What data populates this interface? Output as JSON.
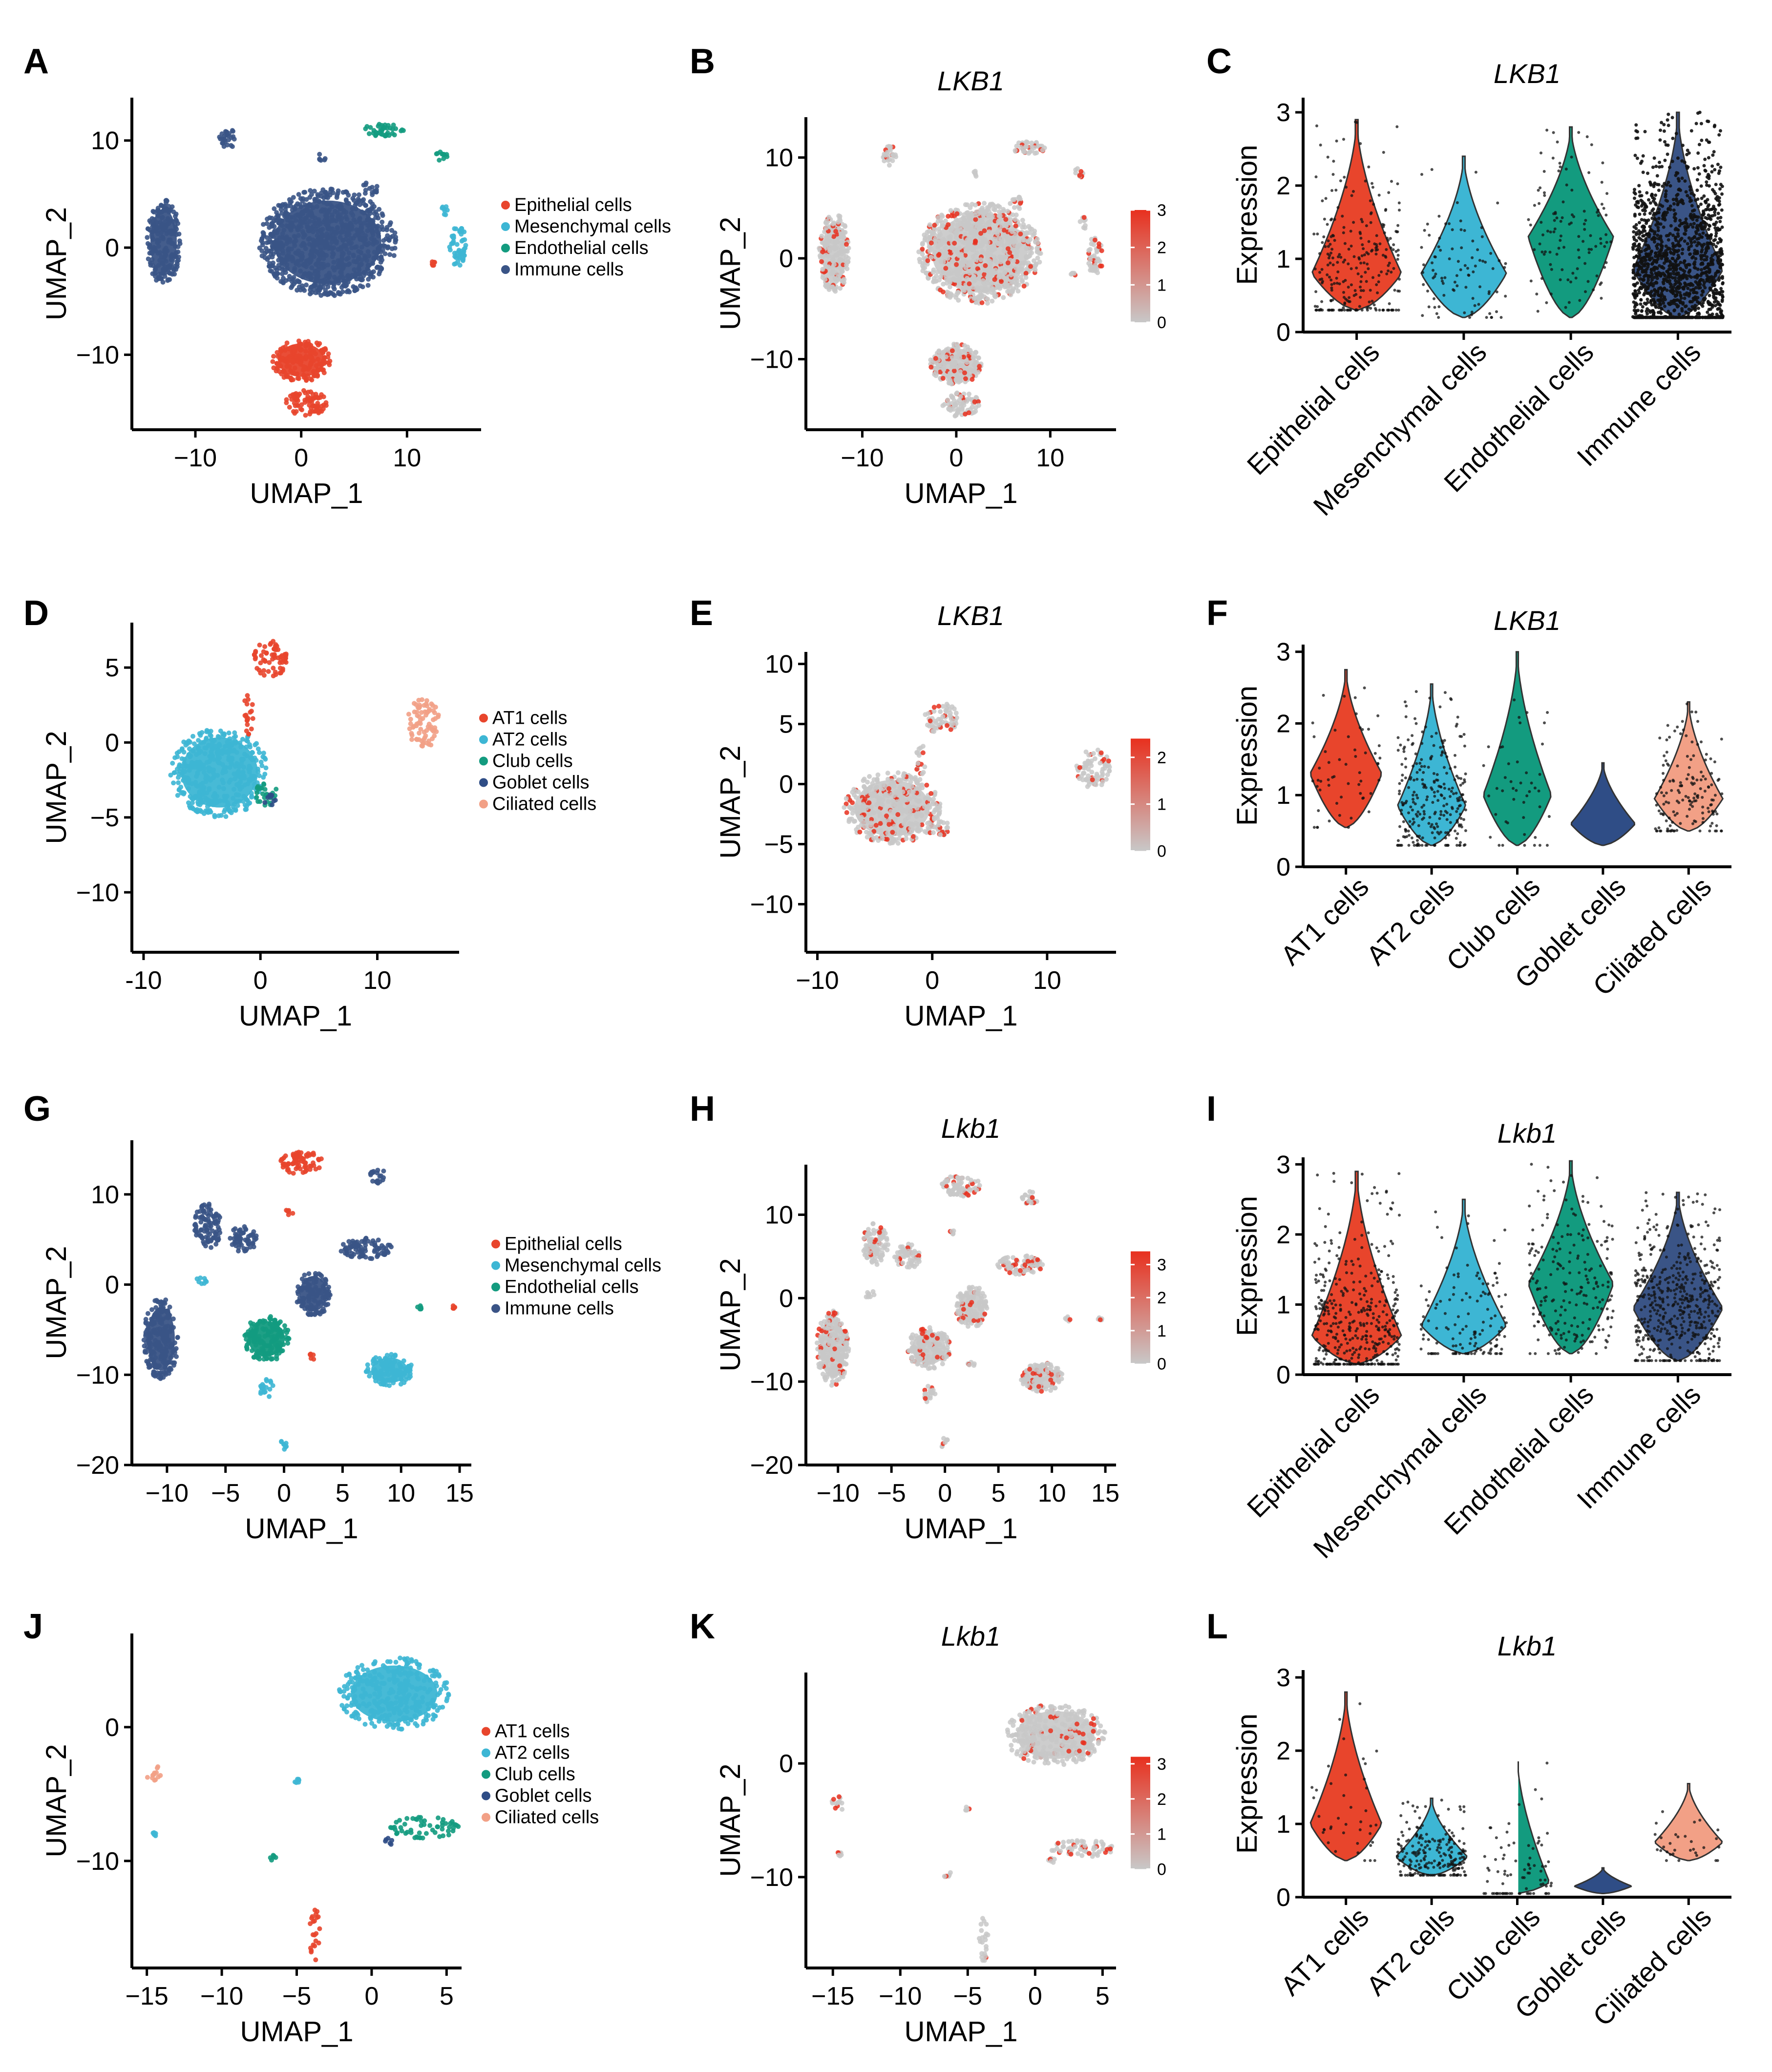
{
  "colors": {
    "epithelial": "#e8452c",
    "mesenchymal": "#3db6d4",
    "endothelial": "#139b7f",
    "immune": "#3a5486",
    "at1": "#e8452c",
    "at2": "#3db6d4",
    "club": "#139b7f",
    "goblet": "#2f4d86",
    "ciliated": "#f2a086",
    "feature_low": "#c8c8c8",
    "feature_high": "#e8301e",
    "axis": "#000000"
  },
  "chart_data": [
    {
      "panel": "A",
      "type": "scatter",
      "title": "",
      "xlabel": "UMAP_1",
      "ylabel": "UMAP_2",
      "xlim": [
        -16,
        17
      ],
      "ylim": [
        -17,
        14
      ],
      "xticks": [
        -10,
        0,
        10
      ],
      "yticks": [
        -10,
        0,
        10
      ],
      "xtick_labels": [
        "−10",
        "0",
        "10"
      ],
      "ytick_labels": [
        "−10",
        "0",
        "10"
      ],
      "legend": [
        {
          "label": "Epithelial cells",
          "color_key": "epithelial"
        },
        {
          "label": "Mesenchymal cells",
          "color_key": "mesenchymal"
        },
        {
          "label": "Endothelial cells",
          "color_key": "endothelial"
        },
        {
          "label": "Immune cells",
          "color_key": "immune"
        }
      ],
      "clusters": [
        {
          "group": "immune",
          "cx": 2.5,
          "cy": 0.5,
          "rx": 6.5,
          "ry": 5.0
        },
        {
          "group": "immune",
          "cx": -13.0,
          "cy": 0.5,
          "rx": 1.6,
          "ry": 4.0
        },
        {
          "group": "immune",
          "cx": -7.0,
          "cy": 10.2,
          "rx": 0.8,
          "ry": 1.0
        },
        {
          "group": "immune",
          "cx": 6.5,
          "cy": 5.5,
          "rx": 0.8,
          "ry": 0.6
        },
        {
          "group": "immune",
          "cx": 2.0,
          "cy": 8.5,
          "rx": 0.4,
          "ry": 0.4
        },
        {
          "group": "endothelial",
          "cx": 7.8,
          "cy": 11.0,
          "rx": 2.0,
          "ry": 0.6
        },
        {
          "group": "endothelial",
          "cx": 13.2,
          "cy": 8.5,
          "rx": 0.6,
          "ry": 0.5
        },
        {
          "group": "mesenchymal",
          "cx": 14.8,
          "cy": 0.2,
          "rx": 0.8,
          "ry": 2.0
        },
        {
          "group": "mesenchymal",
          "cx": 13.5,
          "cy": 3.5,
          "rx": 0.4,
          "ry": 0.6
        },
        {
          "group": "epithelial",
          "cx": 0.0,
          "cy": -10.5,
          "rx": 2.8,
          "ry": 2.0
        },
        {
          "group": "epithelial",
          "cx": 0.5,
          "cy": -14.5,
          "rx": 2.0,
          "ry": 1.2
        },
        {
          "group": "epithelial",
          "cx": 12.5,
          "cy": -1.5,
          "rx": 0.3,
          "ry": 0.3
        }
      ]
    },
    {
      "panel": "B",
      "type": "scatter",
      "title": "LKB1",
      "xlabel": "UMAP_1",
      "ylabel": "UMAP_2",
      "xlim": [
        -16,
        17
      ],
      "ylim": [
        -17,
        14
      ],
      "xticks": [
        -10,
        0,
        10
      ],
      "yticks": [
        -10,
        0,
        10
      ],
      "xtick_labels": [
        "−10",
        "0",
        "10"
      ],
      "ytick_labels": [
        "−10",
        "0",
        "10"
      ],
      "colorbar": {
        "min": 0,
        "max": 3,
        "ticks": [
          0,
          1,
          2,
          3
        ],
        "tick_labels": [
          "0",
          "1",
          "2",
          "3"
        ]
      },
      "source_panel": "A"
    },
    {
      "panel": "C",
      "type": "violin",
      "title": "LKB1",
      "ylabel": "Expression",
      "ylim": [
        0,
        3.2
      ],
      "yticks": [
        0,
        1,
        2,
        3
      ],
      "ytick_labels": [
        "0",
        "1",
        "2",
        "3"
      ],
      "categories": [
        "Epithelial cells",
        "Mesenchymal cells",
        "Endothelial cells",
        "Immune cells"
      ],
      "color_keys": [
        "epithelial",
        "mesenchymal",
        "endothelial",
        "immune"
      ],
      "violins": [
        {
          "min": 0.3,
          "max": 2.9,
          "mode": 0.8,
          "width": 1.0,
          "jitter": 1.0,
          "points": 260
        },
        {
          "min": 0.2,
          "max": 2.4,
          "mode": 0.8,
          "width": 0.95,
          "jitter": 1.0,
          "points": 90
        },
        {
          "min": 0.2,
          "max": 2.8,
          "mode": 1.3,
          "width": 0.95,
          "jitter": 1.0,
          "points": 110
        },
        {
          "min": 0.2,
          "max": 3.0,
          "mode": 0.85,
          "width": 1.0,
          "jitter": 1.0,
          "points": 1400,
          "dense": true
        }
      ]
    },
    {
      "panel": "D",
      "type": "scatter",
      "title": "",
      "xlabel": "UMAP_1",
      "ylabel": "UMAP_2",
      "xlim": [
        -11,
        17
      ],
      "ylim": [
        -14,
        8
      ],
      "xticks": [
        -10,
        0,
        10
      ],
      "yticks": [
        -10,
        -5,
        0,
        5
      ],
      "xtick_labels": [
        "-10",
        "0",
        "10"
      ],
      "ytick_labels": [
        "−10",
        "−5",
        "0",
        "5"
      ],
      "legend": [
        {
          "label": "AT1 cells",
          "color_key": "at1"
        },
        {
          "label": "AT2 cells",
          "color_key": "at2"
        },
        {
          "label": "Club cells",
          "color_key": "club"
        },
        {
          "label": "Goblet cells",
          "color_key": "goblet"
        },
        {
          "label": "Ciliated cells",
          "color_key": "ciliated"
        }
      ],
      "clusters": [
        {
          "group": "at2",
          "cx": -3.5,
          "cy": -2.0,
          "rx": 4.2,
          "ry": 3.0
        },
        {
          "group": "at1",
          "cx": 0.8,
          "cy": 5.5,
          "rx": 1.5,
          "ry": 1.3
        },
        {
          "group": "at1",
          "cx": -1.0,
          "cy": 2.0,
          "rx": 0.4,
          "ry": 1.5
        },
        {
          "group": "club",
          "cx": 0.5,
          "cy": -3.5,
          "rx": 1.0,
          "ry": 0.8
        },
        {
          "group": "goblet",
          "cx": 0.8,
          "cy": -3.8,
          "rx": 0.5,
          "ry": 0.5
        },
        {
          "group": "ciliated",
          "cx": 14.0,
          "cy": 1.3,
          "rx": 1.5,
          "ry": 1.6
        }
      ]
    },
    {
      "panel": "E",
      "type": "scatter",
      "title": "LKB1",
      "xlabel": "UMAP_1",
      "ylabel": "UMAP_2",
      "xlim": [
        -11,
        16
      ],
      "ylim": [
        -14,
        11
      ],
      "xticks": [
        -10,
        0,
        10
      ],
      "yticks": [
        -10,
        -5,
        0,
        5,
        10
      ],
      "xtick_labels": [
        "−10",
        "0",
        "10"
      ],
      "ytick_labels": [
        "−10",
        "−5",
        "0",
        "5",
        "10"
      ],
      "colorbar": {
        "min": 0,
        "max": 2.4,
        "ticks": [
          0,
          1,
          2
        ],
        "tick_labels": [
          "0",
          "1",
          "2"
        ]
      },
      "source_panel": "D"
    },
    {
      "panel": "F",
      "type": "violin",
      "title": "LKB1",
      "ylabel": "Expression",
      "ylim": [
        0,
        3.1
      ],
      "yticks": [
        0,
        1,
        2,
        3
      ],
      "ytick_labels": [
        "0",
        "1",
        "2",
        "3"
      ],
      "categories": [
        "AT1 cells",
        "AT2 cells",
        "Club cells",
        "Goblet cells",
        "Ciliated cells"
      ],
      "color_keys": [
        "at1",
        "at2",
        "club",
        "goblet",
        "ciliated"
      ],
      "violins": [
        {
          "min": 0.55,
          "max": 2.75,
          "mode": 1.3,
          "width": 1.0,
          "jitter": 1.0,
          "points": 55
        },
        {
          "min": 0.3,
          "max": 2.55,
          "mode": 0.85,
          "width": 0.95,
          "jitter": 1.0,
          "points": 260
        },
        {
          "min": 0.3,
          "max": 3.0,
          "mode": 1.0,
          "width": 0.95,
          "jitter": 1.0,
          "points": 45
        },
        {
          "min": 0.3,
          "max": 1.45,
          "mode": 0.6,
          "width": 0.9,
          "jitter": 1.0,
          "points": 0
        },
        {
          "min": 0.5,
          "max": 2.3,
          "mode": 0.95,
          "width": 0.95,
          "jitter": 1.0,
          "points": 150
        }
      ]
    },
    {
      "panel": "G",
      "type": "scatter",
      "title": "",
      "xlabel": "UMAP_1",
      "ylabel": "UMAP_2",
      "xlim": [
        -13,
        16
      ],
      "ylim": [
        -20,
        16
      ],
      "xticks": [
        -10,
        -5,
        0,
        5,
        10,
        15
      ],
      "yticks": [
        -20,
        -10,
        0,
        10
      ],
      "xtick_labels": [
        "−10",
        "−5",
        "0",
        "5",
        "10",
        "15"
      ],
      "ytick_labels": [
        "−20",
        "−10",
        "0",
        "10"
      ],
      "legend": [
        {
          "label": "Epithelial cells",
          "color_key": "epithelial"
        },
        {
          "label": "Mesenchymal cells",
          "color_key": "mesenchymal"
        },
        {
          "label": "Endothelial cells",
          "color_key": "endothelial"
        },
        {
          "label": "Immune cells",
          "color_key": "immune"
        }
      ],
      "clusters": [
        {
          "group": "epithelial",
          "cx": 1.5,
          "cy": 13.5,
          "rx": 1.8,
          "ry": 1.3
        },
        {
          "group": "epithelial",
          "cx": 0.5,
          "cy": 8.0,
          "rx": 0.4,
          "ry": 0.4
        },
        {
          "group": "epithelial",
          "cx": 2.5,
          "cy": -8.0,
          "rx": 0.4,
          "ry": 0.4
        },
        {
          "group": "epithelial",
          "cx": 14.5,
          "cy": -2.5,
          "rx": 0.2,
          "ry": 0.2
        },
        {
          "group": "immune",
          "cx": 8.0,
          "cy": 12.0,
          "rx": 0.8,
          "ry": 0.8
        },
        {
          "group": "immune",
          "cx": -6.5,
          "cy": 6.5,
          "rx": 1.2,
          "ry": 2.5
        },
        {
          "group": "immune",
          "cx": -3.5,
          "cy": 5.0,
          "rx": 1.2,
          "ry": 1.5
        },
        {
          "group": "immune",
          "cx": 7.0,
          "cy": 4.0,
          "rx": 2.2,
          "ry": 1.2
        },
        {
          "group": "immune",
          "cx": 2.5,
          "cy": -1.0,
          "rx": 1.5,
          "ry": 2.5
        },
        {
          "group": "immune",
          "cx": -10.5,
          "cy": -6.0,
          "rx": 1.5,
          "ry": 4.5
        },
        {
          "group": "endothelial",
          "cx": -1.5,
          "cy": -6.0,
          "rx": 2.0,
          "ry": 2.5
        },
        {
          "group": "endothelial",
          "cx": 11.5,
          "cy": -2.5,
          "rx": 0.4,
          "ry": 0.3
        },
        {
          "group": "mesenchymal",
          "cx": 9.0,
          "cy": -9.5,
          "rx": 2.0,
          "ry": 1.8
        },
        {
          "group": "mesenchymal",
          "cx": -1.5,
          "cy": -11.5,
          "rx": 0.6,
          "ry": 1.0
        },
        {
          "group": "mesenchymal",
          "cx": 0.0,
          "cy": -17.5,
          "rx": 0.3,
          "ry": 0.8
        },
        {
          "group": "mesenchymal",
          "cx": -7.0,
          "cy": 0.5,
          "rx": 0.5,
          "ry": 0.5
        }
      ]
    },
    {
      "panel": "H",
      "type": "scatter",
      "title": "Lkb1",
      "xlabel": "UMAP_1",
      "ylabel": "UMAP_2",
      "xlim": [
        -13,
        16
      ],
      "ylim": [
        -20,
        16
      ],
      "xticks": [
        -10,
        -5,
        0,
        5,
        10,
        15
      ],
      "yticks": [
        -20,
        -10,
        0,
        10
      ],
      "xtick_labels": [
        "−10",
        "−5",
        "0",
        "5",
        "10",
        "15"
      ],
      "ytick_labels": [
        "−20",
        "−10",
        "0",
        "10"
      ],
      "colorbar": {
        "min": 0,
        "max": 3.4,
        "ticks": [
          0,
          1,
          2,
          3
        ],
        "tick_labels": [
          "0",
          "1",
          "2",
          "3"
        ]
      },
      "source_panel": "G"
    },
    {
      "panel": "I",
      "type": "violin",
      "title": "Lkb1",
      "ylabel": "Expression",
      "ylim": [
        0,
        3.1
      ],
      "yticks": [
        0,
        1,
        2,
        3
      ],
      "ytick_labels": [
        "0",
        "1",
        "2",
        "3"
      ],
      "categories": [
        "Epithelial cells",
        "Mesenchymal cells",
        "Endothelial cells",
        "Immune cells"
      ],
      "color_keys": [
        "epithelial",
        "mesenchymal",
        "endothelial",
        "immune"
      ],
      "violins": [
        {
          "min": 0.15,
          "max": 2.9,
          "mode": 0.55,
          "width": 1.0,
          "jitter": 1.0,
          "points": 420
        },
        {
          "min": 0.3,
          "max": 2.5,
          "mode": 0.7,
          "width": 0.95,
          "jitter": 1.0,
          "points": 130
        },
        {
          "min": 0.3,
          "max": 3.05,
          "mode": 1.3,
          "width": 0.95,
          "jitter": 1.0,
          "points": 210
        },
        {
          "min": 0.2,
          "max": 2.6,
          "mode": 0.95,
          "width": 1.0,
          "jitter": 1.0,
          "points": 520
        }
      ]
    },
    {
      "panel": "J",
      "type": "scatter",
      "title": "",
      "xlabel": "UMAP_1",
      "ylabel": "UMAP_2",
      "xlim": [
        -16,
        6
      ],
      "ylim": [
        -18,
        7
      ],
      "xticks": [
        -15,
        -10,
        -5,
        0,
        5
      ],
      "yticks": [
        -10,
        0
      ],
      "xtick_labels": [
        "−15",
        "−10",
        "−5",
        "0",
        "5"
      ],
      "ytick_labels": [
        "−10",
        "0"
      ],
      "legend": [
        {
          "label": "AT1 cells",
          "color_key": "at1"
        },
        {
          "label": "AT2 cells",
          "color_key": "at2"
        },
        {
          "label": "Club cells",
          "color_key": "club"
        },
        {
          "label": "Goblet cells",
          "color_key": "goblet"
        },
        {
          "label": "Ciliated cells",
          "color_key": "ciliated"
        }
      ],
      "clusters": [
        {
          "group": "at2",
          "cx": 1.5,
          "cy": 2.5,
          "rx": 3.7,
          "ry": 2.7
        },
        {
          "group": "club",
          "cx": 3.5,
          "cy": -7.5,
          "rx": 2.3,
          "ry": 0.8
        },
        {
          "group": "goblet",
          "cx": 1.2,
          "cy": -8.5,
          "rx": 0.3,
          "ry": 0.3
        },
        {
          "group": "ciliated",
          "cx": -14.5,
          "cy": -3.5,
          "rx": 0.6,
          "ry": 0.6
        },
        {
          "group": "at1",
          "cx": -3.8,
          "cy": -15.5,
          "rx": 0.35,
          "ry": 2.0
        },
        {
          "group": "at2",
          "cx": -5.0,
          "cy": -4.0,
          "rx": 0.2,
          "ry": 0.2
        },
        {
          "group": "at2",
          "cx": -14.5,
          "cy": -8.0,
          "rx": 0.2,
          "ry": 0.2
        },
        {
          "group": "club",
          "cx": -6.5,
          "cy": -9.8,
          "rx": 0.3,
          "ry": 0.3
        }
      ]
    },
    {
      "panel": "K",
      "type": "scatter",
      "title": "Lkb1",
      "xlabel": "UMAP_1",
      "ylabel": "UMAP_2",
      "xlim": [
        -17,
        6
      ],
      "ylim": [
        -18,
        8
      ],
      "xticks": [
        -15,
        -10,
        -5,
        0,
        5
      ],
      "yticks": [
        -10,
        0
      ],
      "xtick_labels": [
        "−15",
        "−10",
        "−5",
        "0",
        "5"
      ],
      "ytick_labels": [
        "−10",
        "0"
      ],
      "colorbar": {
        "min": 0,
        "max": 3.2,
        "ticks": [
          0,
          1,
          2,
          3
        ],
        "tick_labels": [
          "0",
          "1",
          "2",
          "3"
        ]
      },
      "source_panel": "J"
    },
    {
      "panel": "L",
      "type": "violin",
      "title": "Lkb1",
      "ylabel": "Expression",
      "ylim": [
        0,
        3.1
      ],
      "yticks": [
        0,
        1,
        2,
        3
      ],
      "ytick_labels": [
        "0",
        "1",
        "2",
        "3"
      ],
      "categories": [
        "AT1 cells",
        "AT2 cells",
        "Club cells",
        "Goblet cells",
        "Ciliated cells"
      ],
      "color_keys": [
        "at1",
        "at2",
        "club",
        "goblet",
        "ciliated"
      ],
      "violins": [
        {
          "min": 0.5,
          "max": 2.8,
          "mode": 1.0,
          "width": 1.0,
          "jitter": 1.0,
          "points": 40
        },
        {
          "min": 0.3,
          "max": 1.35,
          "mode": 0.55,
          "width": 1.0,
          "jitter": 1.0,
          "points": 220
        },
        {
          "min": 0.05,
          "max": 1.9,
          "mode": 0.2,
          "width": 0.9,
          "jitter": 1.0,
          "points": 80
        },
        {
          "min": 0.05,
          "max": 0.4,
          "mode": 0.15,
          "width": 0.8,
          "jitter": 1.0,
          "points": 0
        },
        {
          "min": 0.5,
          "max": 1.55,
          "mode": 0.75,
          "width": 0.95,
          "jitter": 1.0,
          "points": 30
        }
      ]
    }
  ]
}
